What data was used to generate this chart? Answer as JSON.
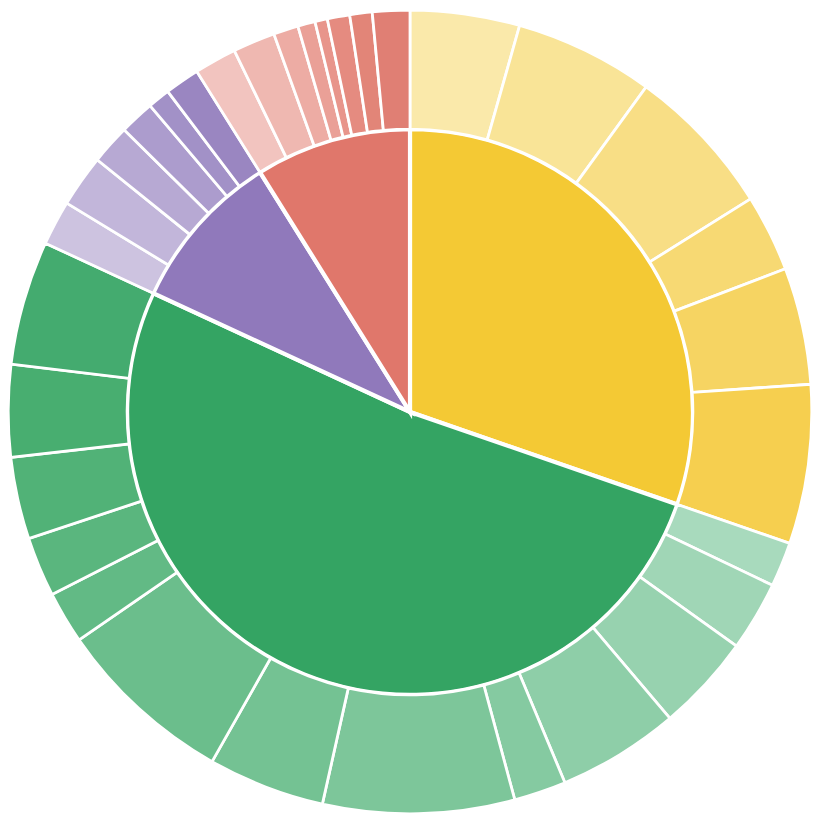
{
  "chart_data": {
    "type": "pie",
    "series": [
      {
        "values": [
          30.3,
          51.6,
          9.2,
          8.9
        ],
        "colors": [
          "#f4c934",
          "#34a463",
          "#9079bb",
          "#e0776b"
        ]
      },
      {
        "values": [
          4.4,
          5.6,
          6.1,
          3.1,
          4.7,
          6.4,
          1.8,
          2.8,
          3.9,
          4.9,
          2.1,
          7.7,
          4.7,
          7.2,
          2.1,
          2.4,
          3.3,
          3.7,
          5.0,
          1.8,
          2.1,
          1.6,
          1.4,
          0.9,
          1.4,
          1.7,
          1.7,
          1.0,
          0.7,
          0.5,
          0.9,
          0.9,
          1.5
        ],
        "colors": [
          "#fae9aa",
          "#f9e497",
          "#f8de85",
          "#f7d973",
          "#f6d462",
          "#f6cf4f",
          "#a8dabd",
          "#a0d6b6",
          "#97d2af",
          "#8ecea8",
          "#85caa1",
          "#7dc69a",
          "#74c293",
          "#6bbe8c",
          "#62ba85",
          "#5ab67e",
          "#51b277",
          "#48ae70",
          "#44ab6f",
          "#cdc3e0",
          "#c2b6da",
          "#b7a9d3",
          "#ac9ccd",
          "#a291c7",
          "#9a86c1",
          "#f2c4bf",
          "#efb8b1",
          "#edaca4",
          "#eaa097",
          "#e8958b",
          "#e58b80",
          "#e28578",
          "#e07f74"
        ]
      }
    ]
  }
}
